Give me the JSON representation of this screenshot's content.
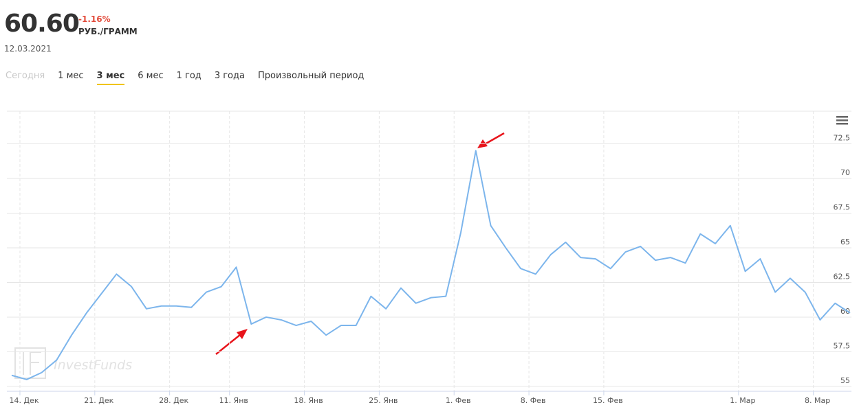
{
  "header": {
    "price": "60.60",
    "change": "-1.16%",
    "unit": "РУБ./ГРАММ",
    "date": "12.03.2021"
  },
  "tabs": {
    "items": [
      "Сегодня",
      "1 мес",
      "3 мес",
      "6 мес",
      "1 год",
      "3 года",
      "Произвольный период"
    ],
    "active": 2,
    "disabled": 0
  },
  "chart_data": {
    "type": "line",
    "watermark": "InvestFunds",
    "categories": [
      null,
      "14. Дек",
      null,
      null,
      null,
      null,
      "21. Дек",
      null,
      null,
      null,
      null,
      "28. Дек",
      null,
      null,
      null,
      "11. Янв",
      null,
      null,
      null,
      null,
      "18. Янв",
      null,
      null,
      null,
      null,
      "25. Янв",
      null,
      null,
      null,
      null,
      "1. Фев",
      null,
      null,
      null,
      null,
      "8. Фев",
      null,
      null,
      null,
      null,
      "15. Фев",
      null,
      null,
      null,
      null,
      null,
      null,
      null,
      null,
      "1. Мар",
      null,
      null,
      null,
      null,
      "8. Мар",
      null,
      null
    ],
    "series": [
      {
        "color": "#7cb5ec",
        "values": [
          55.8,
          55.5,
          56.0,
          56.9,
          58.7,
          60.3,
          61.7,
          63.1,
          62.2,
          60.6,
          60.8,
          60.8,
          60.7,
          61.8,
          62.2,
          63.6,
          59.5,
          60.0,
          59.8,
          59.4,
          59.7,
          58.7,
          59.4,
          59.4,
          61.5,
          60.6,
          62.1,
          61.0,
          61.4,
          61.5,
          66.1,
          72.0,
          66.6,
          65.0,
          63.5,
          63.1,
          64.5,
          65.4,
          64.3,
          64.2,
          63.5,
          64.7,
          65.1,
          64.1,
          64.3,
          63.9,
          66.0,
          65.3,
          66.6,
          63.3,
          64.2,
          61.8,
          62.8,
          61.8,
          59.8,
          61.0,
          60.3
        ]
      }
    ],
    "ylim": [
      54.65,
      74.85
    ],
    "yticks": [
      55,
      57.5,
      60,
      62.5,
      65,
      67.5,
      70,
      72.5
    ],
    "grid": true
  }
}
